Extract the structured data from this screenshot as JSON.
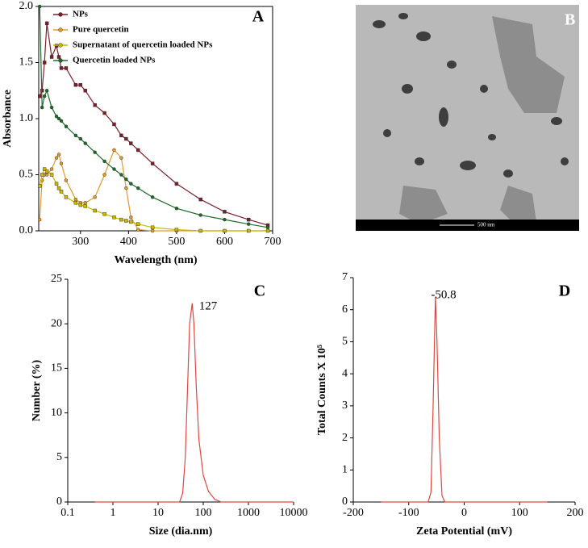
{
  "chart_data": [
    {
      "type": "line",
      "panel_label": "A",
      "xlabel": "Wavelength (nm)",
      "ylabel": "Absorbance",
      "xlim": [
        213,
        700
      ],
      "ylim": [
        0,
        2
      ],
      "xticks": [
        300,
        400,
        500,
        600,
        700
      ],
      "yticks": [
        {
          "value": 0,
          "label": "0.0"
        },
        {
          "value": 0.5,
          "label": "0.5"
        },
        {
          "value": 1,
          "label": "1.0"
        },
        {
          "value": 1.5,
          "label": "1.5"
        },
        {
          "value": 2,
          "label": "2.0"
        }
      ],
      "legend": "upper left",
      "markers": true,
      "x": [
        215,
        220,
        225,
        230,
        240,
        250,
        255,
        260,
        270,
        290,
        300,
        310,
        330,
        350,
        370,
        385,
        395,
        405,
        420,
        450,
        500,
        550,
        600,
        650,
        690
      ],
      "series": [
        {
          "name": "NPs",
          "color": "#7b1f2a",
          "values": [
            1.2,
            1.25,
            1.5,
            1.85,
            1.55,
            1.65,
            1.55,
            1.45,
            1.45,
            1.3,
            1.3,
            1.25,
            1.12,
            1.05,
            0.95,
            0.85,
            0.82,
            0.78,
            0.72,
            0.6,
            0.42,
            0.28,
            0.17,
            0.1,
            0.05
          ]
        },
        {
          "name": "Pure quercetin",
          "color": "#e39a2c",
          "values": [
            0.1,
            0.45,
            0.5,
            0.5,
            0.55,
            0.65,
            0.68,
            0.6,
            0.45,
            0.28,
            0.25,
            0.25,
            0.3,
            0.5,
            0.72,
            0.65,
            0.38,
            0.12,
            0.01,
            0,
            0,
            0,
            0,
            0,
            0
          ]
        },
        {
          "name": "Supernatant of quercetin loaded NPs",
          "color": "#c9b800",
          "values": [
            0.4,
            0.5,
            0.55,
            0.53,
            0.5,
            0.42,
            0.38,
            0.35,
            0.3,
            0.25,
            0.23,
            0.22,
            0.18,
            0.15,
            0.12,
            0.1,
            0.09,
            0.08,
            0.06,
            0.03,
            0.01,
            0,
            0,
            0,
            0
          ]
        },
        {
          "name": "Quercetin loaded NPs",
          "color": "#1f6b2a",
          "values": [
            2.0,
            1.1,
            1.2,
            1.25,
            1.1,
            1.02,
            1.0,
            0.98,
            0.93,
            0.85,
            0.82,
            0.78,
            0.7,
            0.62,
            0.55,
            0.5,
            0.46,
            0.42,
            0.38,
            0.3,
            0.2,
            0.14,
            0.1,
            0.06,
            0.03
          ]
        }
      ]
    },
    {
      "type": "line",
      "panel_label": "C",
      "xlabel": "Size (dia.nm)",
      "ylabel": "Number (%)",
      "log_x": true,
      "annotation": "127",
      "xlim": [
        0.1,
        10000
      ],
      "ylim": [
        0,
        25
      ],
      "xticks": [
        0.1,
        1,
        10,
        100,
        1000,
        10000
      ],
      "yticks": [
        0,
        5,
        10,
        15,
        20,
        25
      ],
      "x": [
        0.4,
        30,
        35,
        40,
        45,
        50,
        57,
        62,
        70,
        80,
        100,
        130,
        180,
        250,
        10000
      ],
      "series": [
        {
          "color": "#e0473f",
          "values": [
            0,
            0,
            1,
            5,
            13,
            20,
            22.3,
            20,
            13,
            7,
            3,
            1.2,
            0.3,
            0,
            0
          ]
        }
      ]
    },
    {
      "type": "line",
      "panel_label": "D",
      "xlabel": "Zeta Potential (mV)",
      "ylabel": "Total Counts X 10⁵",
      "annotation": "-50.8",
      "xlim": [
        -200,
        200
      ],
      "ylim": [
        0,
        7
      ],
      "xticks": [
        -200,
        -100,
        0,
        100,
        200
      ],
      "yticks": [
        0,
        1,
        2,
        3,
        4,
        5,
        6,
        7
      ],
      "x": [
        -150,
        -65,
        -60,
        -56,
        -52,
        -49,
        -45,
        -40,
        -35,
        150
      ],
      "series": [
        {
          "color": "#e0473f",
          "values": [
            0,
            0,
            0.3,
            3,
            6.4,
            5,
            2,
            0.2,
            0,
            0
          ]
        }
      ]
    }
  ],
  "micrograph": {
    "panel_label": "B",
    "scale_bar": "500 nm"
  }
}
